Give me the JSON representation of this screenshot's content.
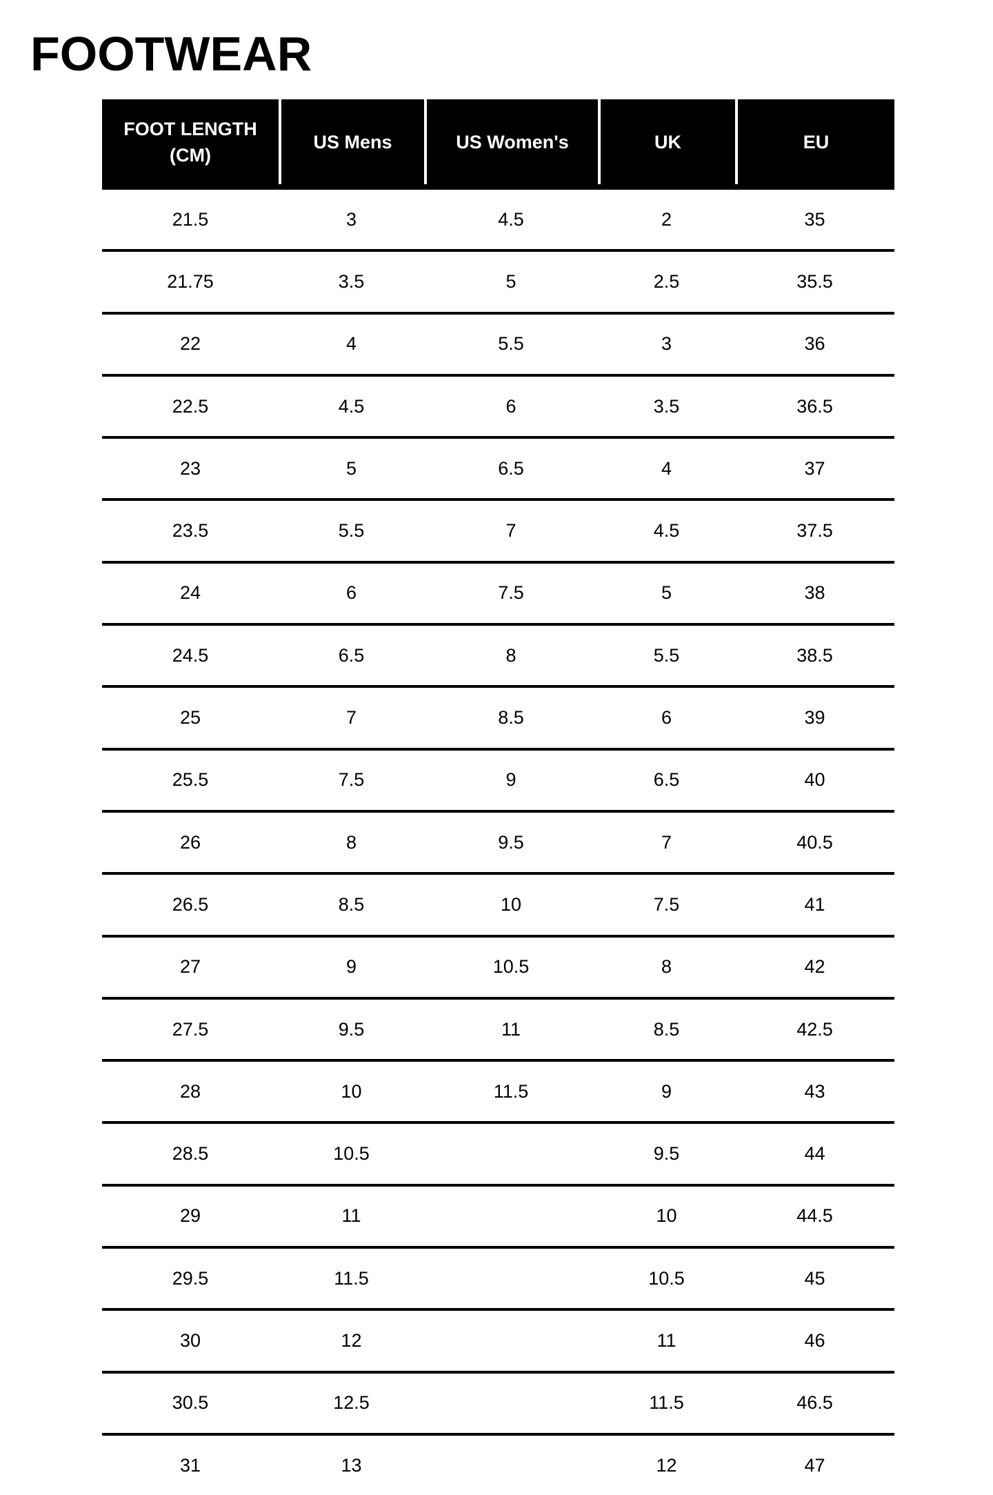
{
  "title": "FOOTWEAR",
  "table": {
    "headers": [
      "FOOT LENGTH (CM)",
      "US Mens",
      "US Women's",
      "UK",
      "EU"
    ],
    "rows": [
      [
        "21.5",
        "3",
        "4.5",
        "2",
        "35"
      ],
      [
        "21.75",
        "3.5",
        "5",
        "2.5",
        "35.5"
      ],
      [
        "22",
        "4",
        "5.5",
        "3",
        "36"
      ],
      [
        "22.5",
        "4.5",
        "6",
        "3.5",
        "36.5"
      ],
      [
        "23",
        "5",
        "6.5",
        "4",
        "37"
      ],
      [
        "23.5",
        "5.5",
        "7",
        "4.5",
        "37.5"
      ],
      [
        "24",
        "6",
        "7.5",
        "5",
        "38"
      ],
      [
        "24.5",
        "6.5",
        "8",
        "5.5",
        "38.5"
      ],
      [
        "25",
        "7",
        "8.5",
        "6",
        "39"
      ],
      [
        "25.5",
        "7.5",
        "9",
        "6.5",
        "40"
      ],
      [
        "26",
        "8",
        "9.5",
        "7",
        "40.5"
      ],
      [
        "26.5",
        "8.5",
        "10",
        "7.5",
        "41"
      ],
      [
        "27",
        "9",
        "10.5",
        "8",
        "42"
      ],
      [
        "27.5",
        "9.5",
        "11",
        "8.5",
        "42.5"
      ],
      [
        "28",
        "10",
        "11.5",
        "9",
        "43"
      ],
      [
        "28.5",
        "10.5",
        "",
        "9.5",
        "44"
      ],
      [
        "29",
        "11",
        "",
        "10",
        "44.5"
      ],
      [
        "29.5",
        "11.5",
        "",
        "10.5",
        "45"
      ],
      [
        "30",
        "12",
        "",
        "11",
        "46"
      ],
      [
        "30.5",
        "12.5",
        "",
        "11.5",
        "46.5"
      ],
      [
        "31",
        "13",
        "",
        "12",
        "47"
      ]
    ]
  }
}
